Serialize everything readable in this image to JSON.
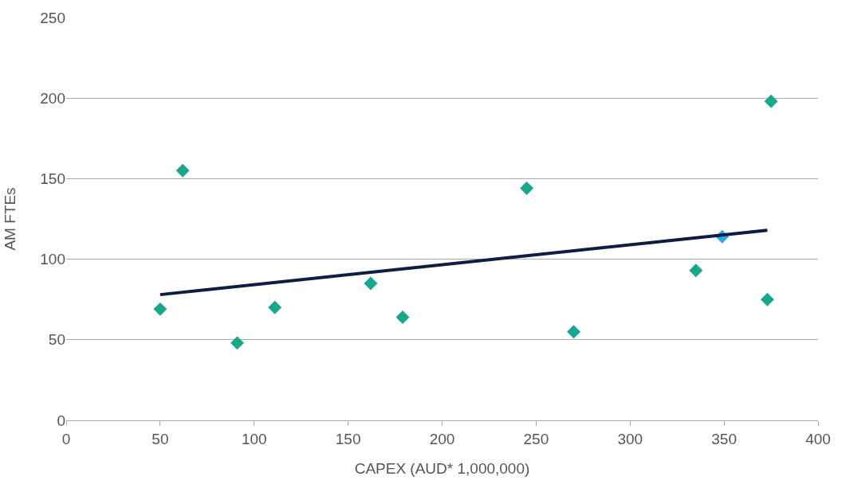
{
  "chart_data": {
    "type": "scatter",
    "xlabel": "CAPEX (AUD* 1,000,000)",
    "ylabel": "AM FTEs",
    "xlim": [
      0,
      400
    ],
    "xticks": [
      0,
      50,
      100,
      150,
      200,
      250,
      300,
      350,
      400
    ],
    "ylim": [
      0,
      250
    ],
    "yticks": [
      0,
      50,
      100,
      150,
      200,
      250
    ],
    "grid": "y",
    "marker": "diamond",
    "series": [
      {
        "color": "#16a88c",
        "x": [
          50,
          62,
          91,
          111,
          162,
          179,
          245,
          270,
          335,
          373,
          375
        ],
        "values": [
          69,
          155,
          48,
          70,
          85,
          64,
          144,
          55,
          93,
          75,
          198
        ]
      },
      {
        "color": "#2aa9e6",
        "x": [
          349
        ],
        "values": [
          114
        ]
      },
      {
        "type": "line",
        "color": "#0d1d45",
        "marker": "none",
        "line_style": "solid",
        "x": [
          50,
          373
        ],
        "values": [
          78,
          118
        ]
      }
    ]
  }
}
